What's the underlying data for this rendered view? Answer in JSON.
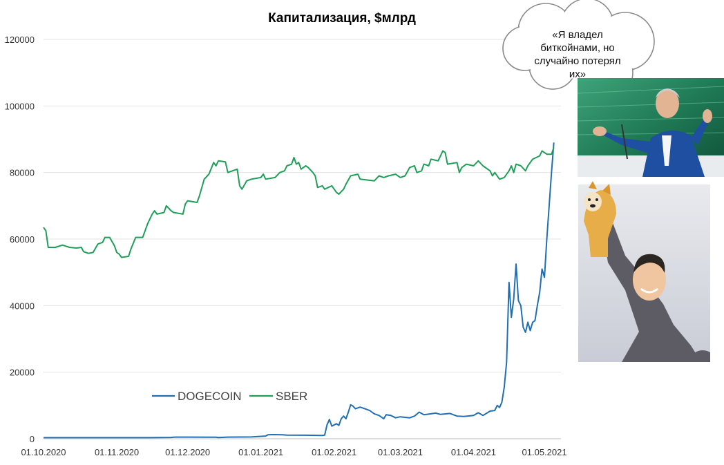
{
  "chart_data": {
    "type": "line",
    "title": "Капитализация, $млрд",
    "xlabel": "",
    "ylabel": "",
    "ylim": [
      0,
      120000
    ],
    "yticks": [
      0,
      20000,
      40000,
      60000,
      80000,
      100000,
      120000
    ],
    "ytick_labels": [
      "0",
      "20000",
      "40000",
      "60000",
      "80000",
      "100000",
      "120000"
    ],
    "xlim": [
      "2020-10-01",
      "2021-05-08"
    ],
    "xticks": [
      "2020-10-01",
      "2020-11-01",
      "2020-12-01",
      "2021-01-01",
      "2021-02-01",
      "2021-03-01",
      "2021-04-01",
      "2021-05-01"
    ],
    "xtick_labels": [
      "01.10.2020",
      "01.11.2020",
      "01.12.2020",
      "01.01.2021",
      "01.02.2021",
      "01.03.2021",
      "01.04.2021",
      "01.05.2021"
    ],
    "grid": "horizontal",
    "legend_position": "bottom-center",
    "series": [
      {
        "name": "DOGECOIN",
        "color": "#1f6fb2",
        "points": [
          [
            "2020-10-01",
            330
          ],
          [
            "2020-10-15",
            330
          ],
          [
            "2020-11-01",
            330
          ],
          [
            "2020-11-15",
            330
          ],
          [
            "2020-11-24",
            400
          ],
          [
            "2020-11-25",
            480
          ],
          [
            "2020-12-01",
            500
          ],
          [
            "2020-12-10",
            480
          ],
          [
            "2020-12-13",
            450
          ],
          [
            "2020-12-14",
            380
          ],
          [
            "2020-12-18",
            500
          ],
          [
            "2020-12-28",
            550
          ],
          [
            "2021-01-03",
            800
          ],
          [
            "2021-01-04",
            1200
          ],
          [
            "2021-01-06",
            1250
          ],
          [
            "2021-01-10",
            1200
          ],
          [
            "2021-01-12",
            1100
          ],
          [
            "2021-01-20",
            1050
          ],
          [
            "2021-01-27",
            1000
          ],
          [
            "2021-01-28",
            1100
          ],
          [
            "2021-01-29",
            4200
          ],
          [
            "2021-01-30",
            5800
          ],
          [
            "2021-01-31",
            3800
          ],
          [
            "2021-02-02",
            4500
          ],
          [
            "2021-02-03",
            4000
          ],
          [
            "2021-02-04",
            6000
          ],
          [
            "2021-02-05",
            6800
          ],
          [
            "2021-02-06",
            6000
          ],
          [
            "2021-02-07",
            8000
          ],
          [
            "2021-02-08",
            10200
          ],
          [
            "2021-02-09",
            9800
          ],
          [
            "2021-02-10",
            9000
          ],
          [
            "2021-02-12",
            9500
          ],
          [
            "2021-02-14",
            9000
          ],
          [
            "2021-02-16",
            8500
          ],
          [
            "2021-02-18",
            7500
          ],
          [
            "2021-02-20",
            7000
          ],
          [
            "2021-02-22",
            6000
          ],
          [
            "2021-02-23",
            7200
          ],
          [
            "2021-02-25",
            7000
          ],
          [
            "2021-02-27",
            6300
          ],
          [
            "2021-03-01",
            6600
          ],
          [
            "2021-03-05",
            6300
          ],
          [
            "2021-03-07",
            6800
          ],
          [
            "2021-03-09",
            8000
          ],
          [
            "2021-03-11",
            7200
          ],
          [
            "2021-03-14",
            7500
          ],
          [
            "2021-03-16",
            7700
          ],
          [
            "2021-03-18",
            7300
          ],
          [
            "2021-03-22",
            7600
          ],
          [
            "2021-03-25",
            6800
          ],
          [
            "2021-03-28",
            6700
          ],
          [
            "2021-04-01",
            7000
          ],
          [
            "2021-04-03",
            7800
          ],
          [
            "2021-04-05",
            7000
          ],
          [
            "2021-04-08",
            8300
          ],
          [
            "2021-04-10",
            8500
          ],
          [
            "2021-04-11",
            10000
          ],
          [
            "2021-04-12",
            9400
          ],
          [
            "2021-04-13",
            11000
          ],
          [
            "2021-04-14",
            15500
          ],
          [
            "2021-04-15",
            23000
          ],
          [
            "2021-04-16",
            47000
          ],
          [
            "2021-04-17",
            36500
          ],
          [
            "2021-04-18",
            42000
          ],
          [
            "2021-04-19",
            52500
          ],
          [
            "2021-04-20",
            41500
          ],
          [
            "2021-04-21",
            40000
          ],
          [
            "2021-04-22",
            33500
          ],
          [
            "2021-04-23",
            32000
          ],
          [
            "2021-04-24",
            35000
          ],
          [
            "2021-04-25",
            32500
          ],
          [
            "2021-04-26",
            35000
          ],
          [
            "2021-04-27",
            35500
          ],
          [
            "2021-04-28",
            40000
          ],
          [
            "2021-04-29",
            44000
          ],
          [
            "2021-04-30",
            51000
          ],
          [
            "2021-05-01",
            48500
          ],
          [
            "2021-05-02",
            60000
          ],
          [
            "2021-05-03",
            70000
          ],
          [
            "2021-05-04",
            80000
          ],
          [
            "2021-05-05",
            89000
          ]
        ]
      },
      {
        "name": "SBER",
        "color": "#1e9e57",
        "points": [
          [
            "2020-10-01",
            63500
          ],
          [
            "2020-10-02",
            62500
          ],
          [
            "2020-10-03",
            57500
          ],
          [
            "2020-10-06",
            57500
          ],
          [
            "2020-10-09",
            58200
          ],
          [
            "2020-10-12",
            57500
          ],
          [
            "2020-10-15",
            57300
          ],
          [
            "2020-10-17",
            57500
          ],
          [
            "2020-10-18",
            56200
          ],
          [
            "2020-10-20",
            55700
          ],
          [
            "2020-10-22",
            56000
          ],
          [
            "2020-10-24",
            58500
          ],
          [
            "2020-10-26",
            59000
          ],
          [
            "2020-10-27",
            60500
          ],
          [
            "2020-10-29",
            60500
          ],
          [
            "2020-10-31",
            58000
          ],
          [
            "2020-11-01",
            56000
          ],
          [
            "2020-11-02",
            55500
          ],
          [
            "2020-11-03",
            54500
          ],
          [
            "2020-11-06",
            54800
          ],
          [
            "2020-11-07",
            57000
          ],
          [
            "2020-11-09",
            60500
          ],
          [
            "2020-11-12",
            60500
          ],
          [
            "2020-11-14",
            64500
          ],
          [
            "2020-11-16",
            67500
          ],
          [
            "2020-11-17",
            68500
          ],
          [
            "2020-11-18",
            67500
          ],
          [
            "2020-11-21",
            68000
          ],
          [
            "2020-11-22",
            70000
          ],
          [
            "2020-11-24",
            68500
          ],
          [
            "2020-11-25",
            68000
          ],
          [
            "2020-11-29",
            67500
          ],
          [
            "2020-11-30",
            70500
          ],
          [
            "2020-12-01",
            71500
          ],
          [
            "2020-12-05",
            71000
          ],
          [
            "2020-12-06",
            73000
          ],
          [
            "2020-12-08",
            78000
          ],
          [
            "2020-12-10",
            79500
          ],
          [
            "2020-12-12",
            83000
          ],
          [
            "2020-12-13",
            82000
          ],
          [
            "2020-12-14",
            83500
          ],
          [
            "2020-12-17",
            83200
          ],
          [
            "2020-12-18",
            80000
          ],
          [
            "2020-12-22",
            81000
          ],
          [
            "2020-12-23",
            76000
          ],
          [
            "2020-12-24",
            75000
          ],
          [
            "2020-12-26",
            77500
          ],
          [
            "2020-12-28",
            78000
          ],
          [
            "2021-01-01",
            78500
          ],
          [
            "2021-01-02",
            79500
          ],
          [
            "2021-01-03",
            78000
          ],
          [
            "2021-01-07",
            78500
          ],
          [
            "2021-01-09",
            80000
          ],
          [
            "2021-01-11",
            80500
          ],
          [
            "2021-01-12",
            82000
          ],
          [
            "2021-01-14",
            82500
          ],
          [
            "2021-01-15",
            84500
          ],
          [
            "2021-01-16",
            82500
          ],
          [
            "2021-01-17",
            83000
          ],
          [
            "2021-01-18",
            81000
          ],
          [
            "2021-01-20",
            82000
          ],
          [
            "2021-01-21",
            81500
          ],
          [
            "2021-01-23",
            80000
          ],
          [
            "2021-01-24",
            79000
          ],
          [
            "2021-01-25",
            75500
          ],
          [
            "2021-01-27",
            76000
          ],
          [
            "2021-01-28",
            75000
          ],
          [
            "2021-01-31",
            76000
          ],
          [
            "2021-02-02",
            74000
          ],
          [
            "2021-02-03",
            73500
          ],
          [
            "2021-02-05",
            75000
          ],
          [
            "2021-02-06",
            76500
          ],
          [
            "2021-02-08",
            79000
          ],
          [
            "2021-02-11",
            79500
          ],
          [
            "2021-02-12",
            78000
          ],
          [
            "2021-02-18",
            77500
          ],
          [
            "2021-02-20",
            79000
          ],
          [
            "2021-02-22",
            78500
          ],
          [
            "2021-02-24",
            79000
          ],
          [
            "2021-02-27",
            79500
          ],
          [
            "2021-03-01",
            78500
          ],
          [
            "2021-03-03",
            79000
          ],
          [
            "2021-03-05",
            81500
          ],
          [
            "2021-03-07",
            82000
          ],
          [
            "2021-03-08",
            80000
          ],
          [
            "2021-03-10",
            80500
          ],
          [
            "2021-03-11",
            82500
          ],
          [
            "2021-03-13",
            82000
          ],
          [
            "2021-03-14",
            84000
          ],
          [
            "2021-03-17",
            83500
          ],
          [
            "2021-03-19",
            86500
          ],
          [
            "2021-03-20",
            86000
          ],
          [
            "2021-03-21",
            82500
          ],
          [
            "2021-03-25",
            83000
          ],
          [
            "2021-03-26",
            80000
          ],
          [
            "2021-03-27",
            81500
          ],
          [
            "2021-03-29",
            82500
          ],
          [
            "2021-04-01",
            82000
          ],
          [
            "2021-04-03",
            83500
          ],
          [
            "2021-04-05",
            82000
          ],
          [
            "2021-04-08",
            80500
          ],
          [
            "2021-04-09",
            79000
          ],
          [
            "2021-04-10",
            80000
          ],
          [
            "2021-04-12",
            78000
          ],
          [
            "2021-04-14",
            78500
          ],
          [
            "2021-04-16",
            80500
          ],
          [
            "2021-04-17",
            82000
          ],
          [
            "2021-04-18",
            80000
          ],
          [
            "2021-04-19",
            82500
          ],
          [
            "2021-04-21",
            82000
          ],
          [
            "2021-04-23",
            80500
          ],
          [
            "2021-04-24",
            82000
          ],
          [
            "2021-04-26",
            84000
          ],
          [
            "2021-04-29",
            85000
          ],
          [
            "2021-04-30",
            86500
          ],
          [
            "2021-05-02",
            85500
          ],
          [
            "2021-05-04",
            85500
          ],
          [
            "2021-05-05",
            87500
          ]
        ]
      }
    ]
  },
  "callout": {
    "quote_lines": [
      "«Я владел",
      "биткойнами, но",
      "случайно потерял",
      "их»"
    ]
  },
  "photos": {
    "top": "banker-photo",
    "bottom": "meme-dog-lifted-illustration"
  }
}
